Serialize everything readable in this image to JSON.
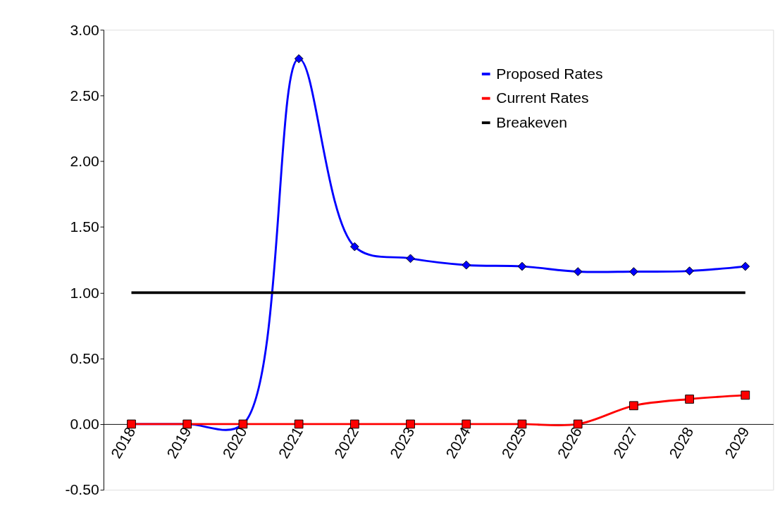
{
  "chart_data": {
    "type": "line",
    "categories": [
      "2018",
      "2019",
      "2020",
      "2021",
      "2022",
      "2023",
      "2024",
      "2025",
      "2026",
      "2027",
      "2028",
      "2029"
    ],
    "series": [
      {
        "name": "Proposed Rates",
        "color": "#0000ff",
        "marker": "diamond",
        "values": [
          0,
          0,
          0,
          2.78,
          1.35,
          1.26,
          1.21,
          1.2,
          1.16,
          1.16,
          1.165,
          1.2
        ]
      },
      {
        "name": "Current Rates",
        "color": "#ff0000",
        "marker": "square",
        "values": [
          0,
          0,
          0,
          0,
          0,
          0,
          0,
          0,
          0,
          0.14,
          0.19,
          0.22
        ]
      },
      {
        "name": "Breakeven",
        "color": "#000000",
        "marker": "none",
        "values": [
          1,
          1,
          1,
          1,
          1,
          1,
          1,
          1,
          1,
          1,
          1,
          1
        ]
      }
    ],
    "ylim": [
      -0.5,
      3.0
    ],
    "yticks": [
      {
        "value": -0.5,
        "label": "-0.50"
      },
      {
        "value": 0,
        "label": "0.00"
      },
      {
        "value": 0.5,
        "label": "0.50"
      },
      {
        "value": 1,
        "label": "1.00"
      },
      {
        "value": 1.5,
        "label": "1.50"
      },
      {
        "value": 2,
        "label": "2.00"
      },
      {
        "value": 2.5,
        "label": "2.50"
      },
      {
        "value": 3,
        "label": "3.00"
      }
    ],
    "grid": false,
    "legend": "top right"
  }
}
